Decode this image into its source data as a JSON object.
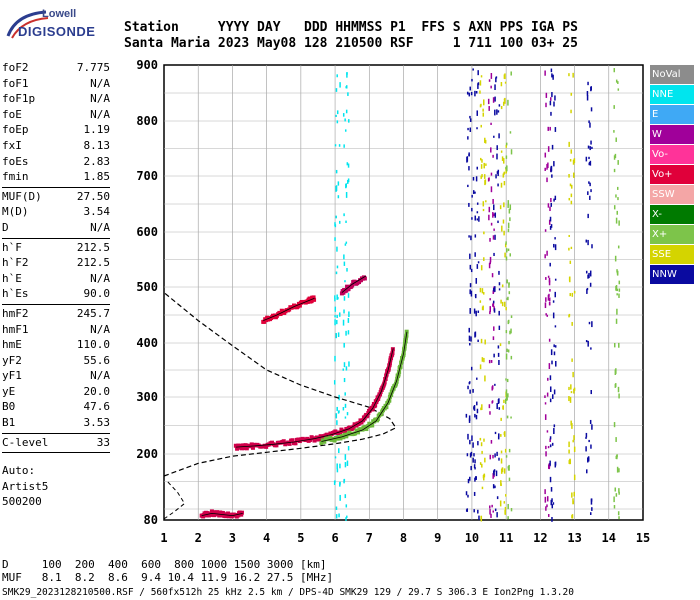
{
  "logo": {
    "line1": "Lowell",
    "line2": "DIGISONDE"
  },
  "header": {
    "row1": "Station     YYYY DAY   DDD HHMMSS P1  FFS S AXN PPS IGA PS",
    "row2": "Santa Maria 2023 May08 128 210500 RSF     1 711 100 03+ 25"
  },
  "params": {
    "groups": [
      [
        [
          "foF2",
          "7.775"
        ],
        [
          "foF1",
          "N/A"
        ],
        [
          "foF1p",
          "N/A"
        ],
        [
          "foE",
          "N/A"
        ],
        [
          "foEp",
          "1.19"
        ],
        [
          "fxI",
          "8.13"
        ],
        [
          "foEs",
          "2.83"
        ],
        [
          "fmin",
          "1.85"
        ]
      ],
      [
        [
          "MUF(D)",
          "27.50"
        ],
        [
          "M(D)",
          "3.54"
        ],
        [
          "D",
          "N/A"
        ]
      ],
      [
        [
          "h`F",
          "212.5"
        ],
        [
          "h`F2",
          "212.5"
        ],
        [
          "h`E",
          "N/A"
        ],
        [
          "h`Es",
          "90.0"
        ]
      ],
      [
        [
          "hmF2",
          "245.7"
        ],
        [
          "hmF1",
          "N/A"
        ],
        [
          "hmE",
          "110.0"
        ],
        [
          "yF2",
          "55.6"
        ],
        [
          "yF1",
          "N/A"
        ],
        [
          "yE",
          "20.0"
        ],
        [
          "B0",
          "47.6"
        ],
        [
          "B1",
          "3.53"
        ]
      ],
      [
        [
          "C-level",
          "33"
        ]
      ]
    ],
    "auto_lines": [
      "Auto:",
      "Artist5",
      "500200"
    ]
  },
  "legend": [
    {
      "label": "NoVal",
      "color": "#8c8c8c"
    },
    {
      "label": "NNE",
      "color": "#00e5ee"
    },
    {
      "label": "E",
      "color": "#3fa9f5"
    },
    {
      "label": "W",
      "color": "#a0009a"
    },
    {
      "label": "Vo-",
      "color": "#ff3399"
    },
    {
      "label": "Vo+",
      "color": "#e0003a"
    },
    {
      "label": "SSW",
      "color": "#f4a6a6"
    },
    {
      "label": "X-",
      "color": "#007a00"
    },
    {
      "label": "X+",
      "color": "#7dc44a"
    },
    {
      "label": "SSE",
      "color": "#d4d400"
    },
    {
      "label": "NNW",
      "color": "#0a0aa0"
    }
  ],
  "bottom": {
    "row1": "D     100  200  400  600  800 1000 1500 3000 [km]",
    "row2": "MUF   8.1  8.2  8.6  9.4 10.4 11.9 16.2 27.5 [MHz]"
  },
  "footer": "SMK29_2023128210500.RSF / 560fx512h 25 kHz 2.5 km / DPS-4D SMK29 129 / 29.7 S 306.3 E Ion2Png 1.3.20",
  "chart_data": {
    "type": "scatter",
    "xlim": [
      1,
      15
    ],
    "ylim": [
      80,
      900
    ],
    "xticks": [
      "1",
      "2",
      "3",
      "4",
      "5",
      "6",
      "7",
      "8",
      "9",
      "10",
      "11",
      "12",
      "13",
      "14",
      "15"
    ],
    "yticks": [
      "80",
      "200",
      "300",
      "400",
      "500",
      "600",
      "700",
      "800",
      "900"
    ],
    "grid": true,
    "traces": [
      {
        "name": "O-trace",
        "color": "#d0004a",
        "points": [
          [
            3.1,
            212
          ],
          [
            3.6,
            214
          ],
          [
            4.2,
            217
          ],
          [
            4.8,
            221
          ],
          [
            5.4,
            227
          ],
          [
            5.9,
            234
          ],
          [
            6.4,
            244
          ],
          [
            6.8,
            258
          ],
          [
            7.1,
            280
          ],
          [
            7.35,
            310
          ],
          [
            7.55,
            350
          ],
          [
            7.7,
            390
          ]
        ]
      },
      {
        "name": "X-trace",
        "color": "#6cb83a",
        "points": [
          [
            5.6,
            222
          ],
          [
            6.2,
            230
          ],
          [
            6.8,
            242
          ],
          [
            7.2,
            258
          ],
          [
            7.55,
            290
          ],
          [
            7.8,
            330
          ],
          [
            8.0,
            380
          ],
          [
            8.1,
            420
          ]
        ]
      },
      {
        "name": "O-upper",
        "color": "#e0003a",
        "points": [
          [
            3.9,
            440
          ],
          [
            4.3,
            450
          ],
          [
            4.8,
            465
          ],
          [
            5.2,
            475
          ],
          [
            5.4,
            480
          ]
        ]
      },
      {
        "name": "O-upper2",
        "color": "#c0005a",
        "points": [
          [
            6.2,
            490
          ],
          [
            6.5,
            505
          ],
          [
            6.9,
            520
          ]
        ]
      },
      {
        "name": "Es",
        "color": "#d0004a",
        "points": [
          [
            2.1,
            88
          ],
          [
            2.4,
            92
          ],
          [
            2.7,
            90
          ],
          [
            3.0,
            88
          ],
          [
            3.3,
            92
          ]
        ]
      }
    ],
    "profile": [
      [
        1.0,
        160
      ],
      [
        2.0,
        183
      ],
      [
        3.0,
        196
      ],
      [
        4.0,
        203
      ],
      [
        5.0,
        210
      ],
      [
        6.0,
        218
      ],
      [
        6.8,
        226
      ],
      [
        7.4,
        235
      ],
      [
        7.775,
        246
      ],
      [
        7.6,
        262
      ],
      [
        7.0,
        282
      ],
      [
        6.0,
        300
      ],
      [
        5.0,
        322
      ],
      [
        4.0,
        350
      ],
      [
        3.0,
        395
      ],
      [
        2.0,
        440
      ],
      [
        1.0,
        490
      ]
    ],
    "profile_low": [
      [
        1.0,
        82
      ],
      [
        1.3,
        95
      ],
      [
        1.6,
        110
      ],
      [
        1.4,
        130
      ],
      [
        1.1,
        150
      ]
    ],
    "noise_columns": [
      {
        "x": 6.05,
        "color": "#00e5ee"
      },
      {
        "x": 6.3,
        "color": "#00e5ee"
      },
      {
        "x": 10.1,
        "color": "#0a0aa0"
      },
      {
        "x": 10.3,
        "color": "#d4d400"
      },
      {
        "x": 10.55,
        "color": "#a0009a"
      },
      {
        "x": 10.7,
        "color": "#0a0aa0"
      },
      {
        "x": 10.9,
        "color": "#d4d400"
      },
      {
        "x": 11.05,
        "color": "#7dc44a"
      },
      {
        "x": 12.2,
        "color": "#a0009a"
      },
      {
        "x": 12.35,
        "color": "#0a0aa0"
      },
      {
        "x": 12.9,
        "color": "#d4d400"
      },
      {
        "x": 13.4,
        "color": "#0a0aa0"
      },
      {
        "x": 14.2,
        "color": "#7dc44a"
      },
      {
        "x": 9.9,
        "color": "#0a0aa0"
      }
    ]
  }
}
